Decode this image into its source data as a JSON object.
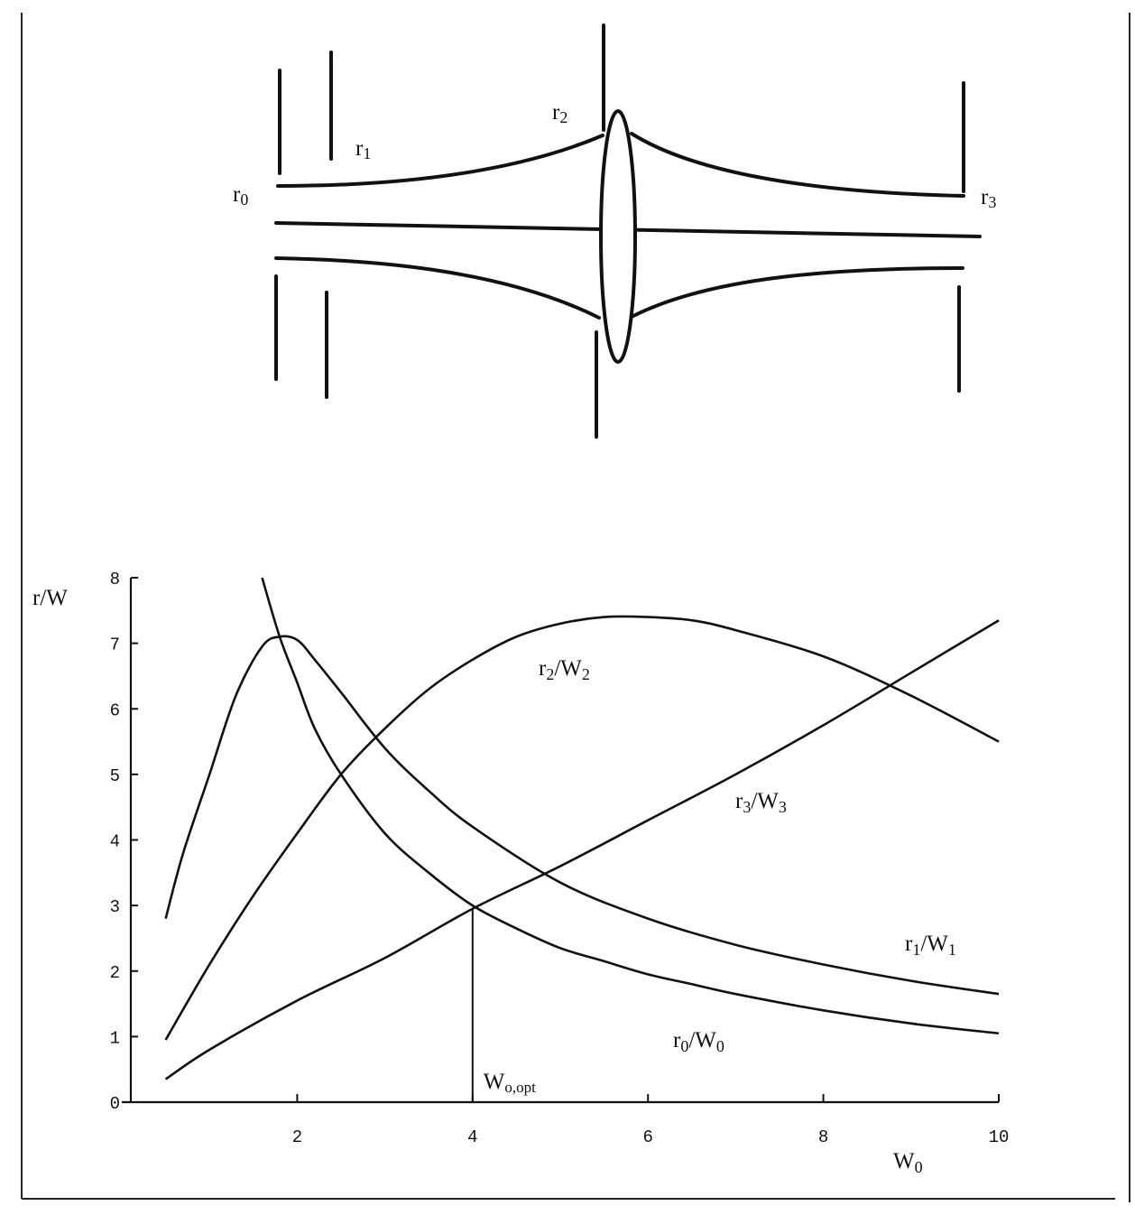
{
  "diagram": {
    "labels": [
      {
        "id": "r0",
        "base": "r",
        "sub": "0"
      },
      {
        "id": "r1",
        "base": "r",
        "sub": "1"
      },
      {
        "id": "r2",
        "base": "r",
        "sub": "2"
      },
      {
        "id": "r3",
        "base": "r",
        "sub": "3"
      }
    ]
  },
  "chart_data": {
    "type": "line",
    "title": "",
    "xlabel": {
      "base": "W",
      "sub": "0"
    },
    "ylabel": "r/W",
    "xlim": [
      0,
      10
    ],
    "ylim": [
      0,
      8
    ],
    "xticks": [
      2,
      4,
      6,
      8,
      10
    ],
    "yticks": [
      0,
      1,
      2,
      3,
      4,
      5,
      6,
      7,
      8
    ],
    "grid": false,
    "legend": "none",
    "series": [
      {
        "name": "r0/W0",
        "label_base": "r",
        "label_sub0": "0",
        "label_mid": "/W",
        "label_sub1": "0",
        "x": [
          1.6,
          1.8,
          2.0,
          2.2,
          2.5,
          3.0,
          3.5,
          4.0,
          4.5,
          5.0,
          5.5,
          6.0,
          6.5,
          7.0,
          8.0,
          9.0,
          10.0
        ],
        "y": [
          8.0,
          7.1,
          6.4,
          5.7,
          5.0,
          4.1,
          3.5,
          3.0,
          2.65,
          2.35,
          2.15,
          1.95,
          1.8,
          1.65,
          1.4,
          1.2,
          1.05
        ]
      },
      {
        "name": "r1/W1",
        "label_base": "r",
        "label_sub0": "1",
        "label_mid": "/W",
        "label_sub1": "1",
        "x": [
          0.5,
          0.7,
          1.0,
          1.3,
          1.6,
          1.8,
          2.0,
          2.2,
          2.5,
          3.0,
          3.5,
          4.0,
          5.0,
          6.0,
          7.0,
          8.0,
          9.0,
          10.0
        ],
        "y": [
          2.8,
          3.8,
          5.0,
          6.2,
          6.95,
          7.1,
          7.05,
          6.75,
          6.25,
          5.4,
          4.75,
          4.2,
          3.35,
          2.8,
          2.4,
          2.1,
          1.85,
          1.65
        ]
      },
      {
        "name": "r2/W2",
        "label_base": "r",
        "label_sub0": "2",
        "label_mid": "/W",
        "label_sub1": "2",
        "x": [
          0.5,
          1.0,
          1.5,
          2.0,
          2.5,
          3.0,
          3.5,
          4.0,
          4.5,
          5.0,
          5.5,
          6.0,
          6.5,
          7.0,
          8.0,
          9.0,
          10.0
        ],
        "y": [
          0.95,
          2.1,
          3.15,
          4.1,
          5.0,
          5.7,
          6.3,
          6.75,
          7.1,
          7.3,
          7.4,
          7.4,
          7.35,
          7.2,
          6.8,
          6.2,
          5.5
        ]
      },
      {
        "name": "r3/W3",
        "label_base": "r",
        "label_sub0": "3",
        "label_mid": "/W",
        "label_sub1": "3",
        "x": [
          0.5,
          1.0,
          2.0,
          3.0,
          4.0,
          5.0,
          6.0,
          7.0,
          8.0,
          9.0,
          10.0
        ],
        "y": [
          0.35,
          0.8,
          1.55,
          2.2,
          2.95,
          3.6,
          4.3,
          5.0,
          5.75,
          6.55,
          7.35
        ]
      }
    ],
    "annotations": [
      {
        "x": 4.0,
        "y": 2.95,
        "base": "W",
        "sub": "o,opt"
      }
    ]
  }
}
